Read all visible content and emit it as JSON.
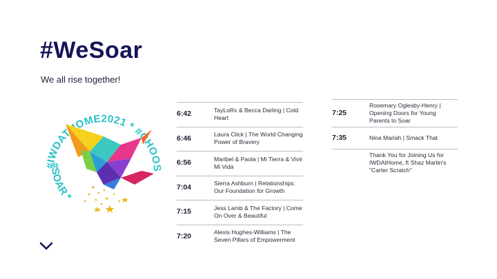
{
  "header": {
    "title": "#WeSoar",
    "subtitle": "We all rise together!"
  },
  "logo": {
    "ring_text_top": "#IWDATHOME2021 * #CHOOSETOCHALLENGE",
    "ring_text_bottom": "#SOAR *",
    "ring_color": "#2bc0c8",
    "stars_color": "#e8b820"
  },
  "schedule": {
    "column1": [
      {
        "time": "6:42",
        "act": "TayLoRx & Becca Darling | Cold Heart"
      },
      {
        "time": "6:46",
        "act": "Laura Click | The World Changing Power of Bravery"
      },
      {
        "time": "6:56",
        "act": "Maribel & Paola | Mi Tierra & Vivir Mi Vida"
      },
      {
        "time": "7:04",
        "act": "Sierra Ashburn | Relationships: Our Foundation for Growth"
      },
      {
        "time": "7:15",
        "act": "Jess Lamb & The Factory | Come On Over & Beautiful"
      },
      {
        "time": "7:20",
        "act": "Alexis Hughes-Williams | The Seven Pillars of Empowerment"
      }
    ],
    "column2": [
      {
        "time": "7:25",
        "act": "Rosemary Oglesby-Henry | Opening Doors for Young Parents to Soar"
      },
      {
        "time": "7:35",
        "act": "Nina Mariah | Smack That"
      },
      {
        "time": "",
        "act": "Thank You for Joining Us for IWDAtHome, ft Shaz Martin's \"Carter Scratch\""
      }
    ]
  },
  "nav": {
    "scroll_down_icon": "chevron-down-icon"
  },
  "colors": {
    "title": "#14145a",
    "divider": "#b9b9c4"
  }
}
